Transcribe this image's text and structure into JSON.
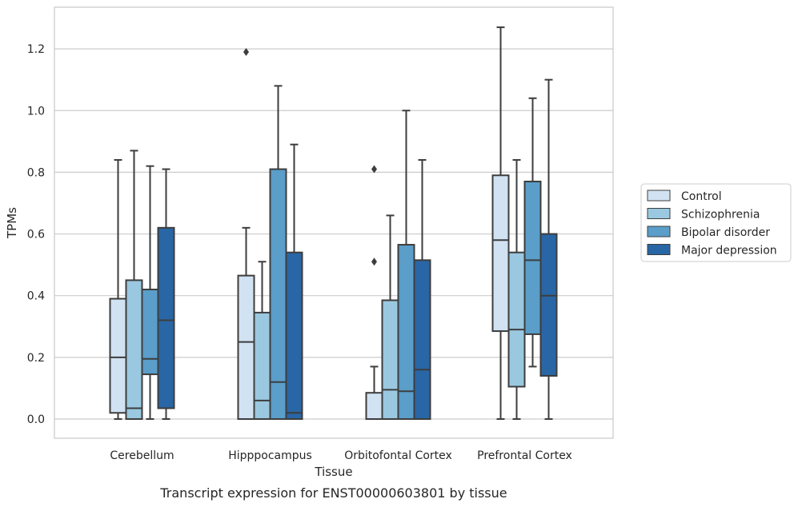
{
  "chart_data": {
    "type": "boxplot",
    "xlabel": "Tissue",
    "ylabel": "TPMs",
    "caption": "Transcript expression for ENST00000603801 by tissue",
    "ylim": [
      -0.06,
      1.34
    ],
    "yticks": [
      0.0,
      0.2,
      0.4,
      0.6,
      0.8,
      1.0,
      1.2
    ],
    "ytick_labels": [
      "0.0",
      "0.2",
      "0.4",
      "0.6",
      "0.8",
      "1.0",
      "1.2"
    ],
    "grid": "horizontal",
    "legend_position": "right",
    "categories": [
      "Cerebellum",
      "Hipppocampus",
      "Orbitofontal Cortex",
      "Prefrontal Cortex"
    ],
    "series": [
      {
        "name": "Control",
        "color": "#d1e2f2",
        "boxes": [
          {
            "whislo": 0.0,
            "q1": 0.02,
            "med": 0.2,
            "q3": 0.39,
            "whishi": 0.84,
            "fliers": []
          },
          {
            "whislo": 0.0,
            "q1": 0.0,
            "med": 0.25,
            "q3": 0.465,
            "whishi": 0.62,
            "fliers": [
              1.19
            ]
          },
          {
            "whislo": 0.0,
            "q1": 0.0,
            "med": 0.0,
            "q3": 0.085,
            "whishi": 0.17,
            "fliers": [
              0.51,
              0.81
            ]
          },
          {
            "whislo": 0.0,
            "q1": 0.285,
            "med": 0.58,
            "q3": 0.79,
            "whishi": 1.27,
            "fliers": []
          }
        ]
      },
      {
        "name": "Schizophrenia",
        "color": "#9ac8e0",
        "boxes": [
          {
            "whislo": 0.0,
            "q1": 0.0,
            "med": 0.035,
            "q3": 0.45,
            "whishi": 0.87,
            "fliers": []
          },
          {
            "whislo": 0.0,
            "q1": 0.0,
            "med": 0.06,
            "q3": 0.345,
            "whishi": 0.51,
            "fliers": []
          },
          {
            "whislo": 0.0,
            "q1": 0.0,
            "med": 0.095,
            "q3": 0.385,
            "whishi": 0.66,
            "fliers": []
          },
          {
            "whislo": 0.0,
            "q1": 0.105,
            "med": 0.29,
            "q3": 0.54,
            "whishi": 0.84,
            "fliers": []
          }
        ]
      },
      {
        "name": "Bipolar disorder",
        "color": "#5a9ec9",
        "boxes": [
          {
            "whislo": 0.0,
            "q1": 0.145,
            "med": 0.195,
            "q3": 0.42,
            "whishi": 0.82,
            "fliers": []
          },
          {
            "whislo": 0.0,
            "q1": 0.0,
            "med": 0.12,
            "q3": 0.81,
            "whishi": 1.08,
            "fliers": []
          },
          {
            "whislo": 0.0,
            "q1": 0.0,
            "med": 0.09,
            "q3": 0.565,
            "whishi": 1.0,
            "fliers": []
          },
          {
            "whislo": 0.17,
            "q1": 0.275,
            "med": 0.515,
            "q3": 0.77,
            "whishi": 1.04,
            "fliers": []
          }
        ]
      },
      {
        "name": "Major depression",
        "color": "#2966a5",
        "boxes": [
          {
            "whislo": 0.0,
            "q1": 0.035,
            "med": 0.32,
            "q3": 0.62,
            "whishi": 0.81,
            "fliers": []
          },
          {
            "whislo": 0.0,
            "q1": 0.0,
            "med": 0.02,
            "q3": 0.54,
            "whishi": 0.89,
            "fliers": []
          },
          {
            "whislo": 0.0,
            "q1": 0.0,
            "med": 0.16,
            "q3": 0.515,
            "whishi": 0.84,
            "fliers": []
          },
          {
            "whislo": 0.0,
            "q1": 0.14,
            "med": 0.4,
            "q3": 0.6,
            "whishi": 1.1,
            "fliers": []
          }
        ]
      }
    ]
  }
}
